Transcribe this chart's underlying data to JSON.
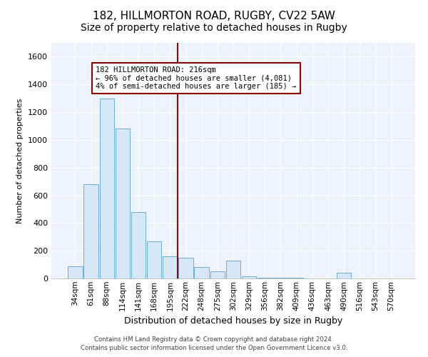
{
  "title": "182, HILLMORTON ROAD, RUGBY, CV22 5AW",
  "subtitle": "Size of property relative to detached houses in Rugby",
  "xlabel": "Distribution of detached houses by size in Rugby",
  "ylabel": "Number of detached properties",
  "bin_labels": [
    "34sqm",
    "61sqm",
    "88sqm",
    "114sqm",
    "141sqm",
    "168sqm",
    "195sqm",
    "222sqm",
    "248sqm",
    "275sqm",
    "302sqm",
    "329sqm",
    "356sqm",
    "382sqm",
    "409sqm",
    "436sqm",
    "463sqm",
    "490sqm",
    "516sqm",
    "543sqm",
    "570sqm"
  ],
  "bar_heights": [
    90,
    680,
    1300,
    1080,
    480,
    270,
    160,
    150,
    80,
    50,
    130,
    15,
    5,
    5,
    3,
    0,
    0,
    40,
    0,
    0,
    0
  ],
  "bar_color": "#d6e8f7",
  "bar_edge_color": "#6aaed6",
  "vline_color": "#8b0000",
  "vline_x_index": 7.0,
  "annotation_label": "182 HILLMORTON ROAD: 216sqm",
  "annotation_line1": "← 96% of detached houses are smaller (4,081)",
  "annotation_line2": "4% of semi-detached houses are larger (185) →",
  "ylim": [
    0,
    1700
  ],
  "yticks": [
    0,
    200,
    400,
    600,
    800,
    1000,
    1200,
    1400,
    1600
  ],
  "bg_color": "#eef3fb",
  "grid_color": "#ffffff",
  "footer_line1": "Contains HM Land Registry data © Crown copyright and database right 2024.",
  "footer_line2": "Contains public sector information licensed under the Open Government Licence v3.0.",
  "title_fontsize": 11,
  "subtitle_fontsize": 10,
  "ylabel_fontsize": 8,
  "xlabel_fontsize": 9,
  "tick_fontsize": 7.5,
  "annot_fontsize": 7.5,
  "footer_fontsize": 6.2
}
